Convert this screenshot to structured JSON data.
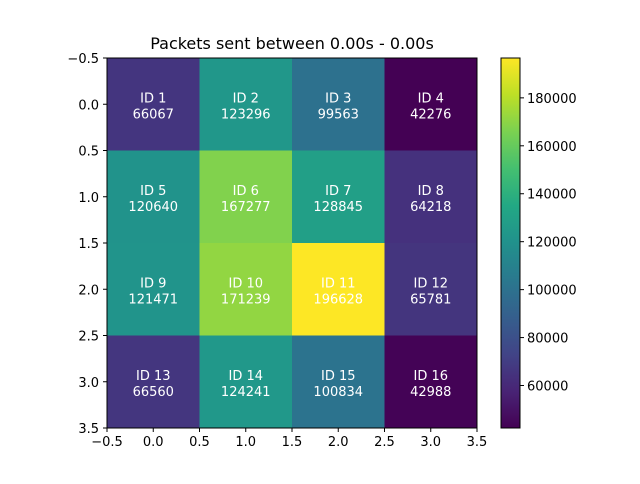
{
  "chart_data": {
    "type": "heatmap",
    "title": "Packets sent between 0.00s - 0.00s",
    "xlabel": "",
    "ylabel": "",
    "x_ticks": [
      "−0.5",
      "0.0",
      "0.5",
      "1.0",
      "1.5",
      "2.0",
      "2.5",
      "3.0",
      "3.5"
    ],
    "y_ticks": [
      "−0.5",
      "0.0",
      "0.5",
      "1.0",
      "1.5",
      "2.0",
      "2.5",
      "3.0",
      "3.5"
    ],
    "xlim": [
      -0.5,
      3.5
    ],
    "ylim": [
      3.5,
      -0.5
    ],
    "grid": false,
    "colormap": "viridis",
    "colorbar": {
      "min": 42276,
      "max": 196628,
      "ticks": [
        "60000",
        "80000",
        "100000",
        "120000",
        "140000",
        "160000",
        "180000"
      ]
    },
    "cells": [
      [
        {
          "label": "ID 1",
          "value": 66067
        },
        {
          "label": "ID 2",
          "value": 123296
        },
        {
          "label": "ID 3",
          "value": 99563
        },
        {
          "label": "ID 4",
          "value": 42276
        }
      ],
      [
        {
          "label": "ID 5",
          "value": 120640
        },
        {
          "label": "ID 6",
          "value": 167277
        },
        {
          "label": "ID 7",
          "value": 128845
        },
        {
          "label": "ID 8",
          "value": 64218
        }
      ],
      [
        {
          "label": "ID 9",
          "value": 121471
        },
        {
          "label": "ID 10",
          "value": 171239
        },
        {
          "label": "ID 11",
          "value": 196628
        },
        {
          "label": "ID 12",
          "value": 65781
        }
      ],
      [
        {
          "label": "ID 13",
          "value": 66560
        },
        {
          "label": "ID 14",
          "value": 124241
        },
        {
          "label": "ID 15",
          "value": 100834
        },
        {
          "label": "ID 16",
          "value": 42988
        }
      ]
    ]
  }
}
